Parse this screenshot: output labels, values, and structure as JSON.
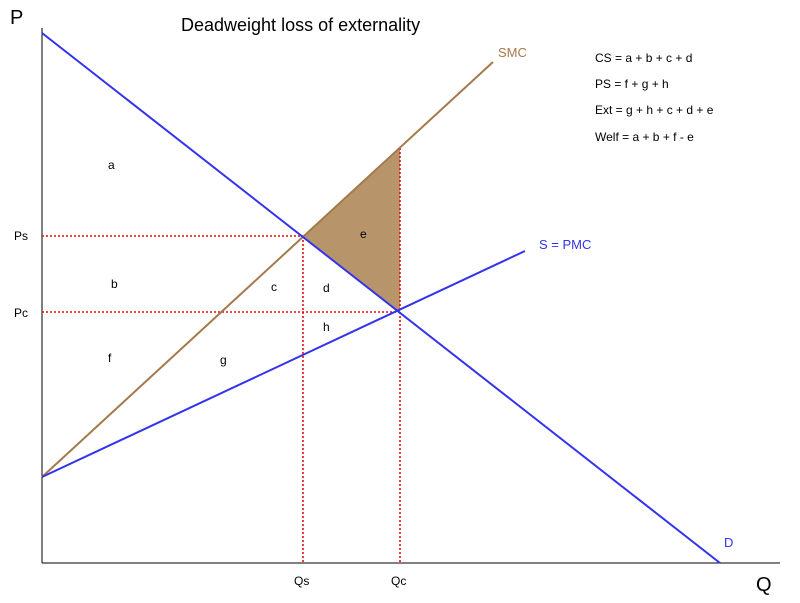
{
  "title": "Deadweight loss of externality",
  "axes": {
    "y_label": "P",
    "x_label": "Q"
  },
  "curves": {
    "smc_label": "SMC",
    "supply_label": "S = PMC",
    "demand_label": "D"
  },
  "ticks": {
    "ps": "Ps",
    "pc": "Pc",
    "qs": "Qs",
    "qc": "Qc"
  },
  "areas": {
    "a": "a",
    "b": "b",
    "c": "c",
    "d": "d",
    "e": "e",
    "f": "f",
    "g": "g",
    "h": "h"
  },
  "legend": {
    "cs": "CS = a + b + c + d",
    "ps": "PS = f + g + h",
    "ext": "Ext = g + h + c + d + e",
    "welf": "Welf = a + b + f - e"
  },
  "colors": {
    "smc": "#a47a4c",
    "supply_demand": "#3333ee",
    "guides": "#dd1111",
    "dwl_fill": "#b8946a"
  }
}
